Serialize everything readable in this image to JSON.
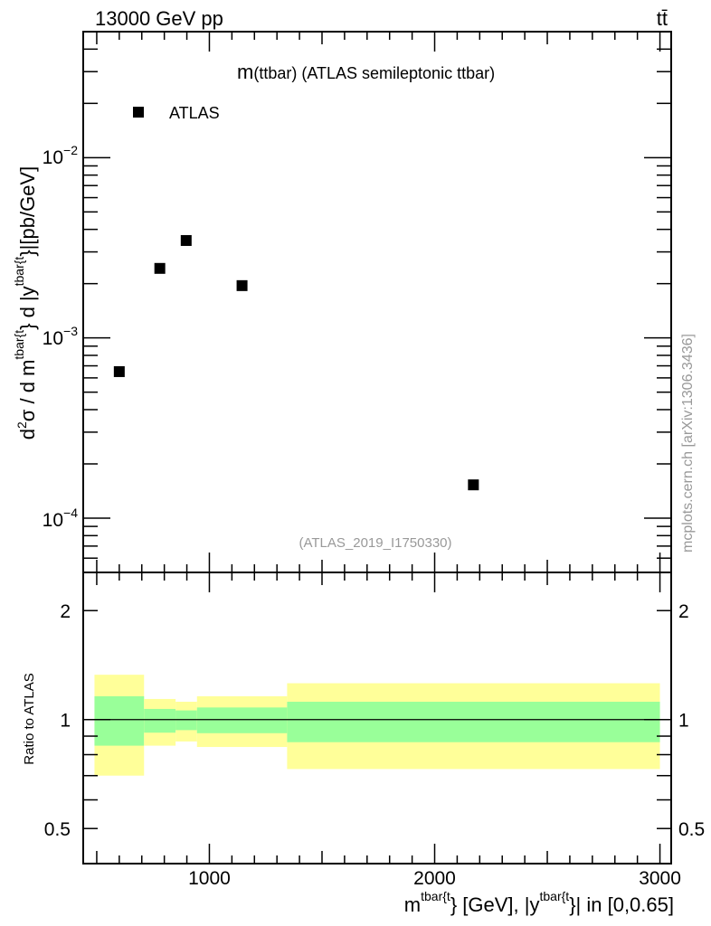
{
  "header": {
    "left": "13000 GeV pp",
    "right": "tt̄"
  },
  "side_label": "mcplots.cern.ch [arXiv:1306.3436]",
  "watermark": "(ATLAS_2019_I1750330)",
  "title": {
    "main": "m",
    "rest": "(ttbar) (ATLAS semileptonic ttbar)"
  },
  "colors": {
    "data": "#000000",
    "band_inner": "#99ff99",
    "band_outer": "#ffff99"
  },
  "chart_data": [
    {
      "type": "scatter",
      "title": "m(ttbar) (ATLAS semileptonic ttbar)",
      "ylabel_parts": {
        "a": "d",
        "a_sup": "2",
        "b": "σ / d m",
        "b_sup": "tbar{t",
        "c": "} d |y",
        "c_sup": "tbar{t",
        "d": "}|[pb/GeV]"
      },
      "yscale": "log",
      "ylim": [
        5e-05,
        0.05
      ],
      "xlim": [
        440,
        3050
      ],
      "ytick_labels": [
        {
          "base": "10",
          "exp": "−2",
          "value": 0.01
        },
        {
          "base": "10",
          "exp": "−3",
          "value": 0.001
        },
        {
          "base": "10",
          "exp": "−4",
          "value": 0.0001
        }
      ],
      "legend": {
        "entries": [
          "ATLAS"
        ],
        "placement": "top-left"
      },
      "series": [
        {
          "name": "ATLAS",
          "x": [
            600,
            780,
            897,
            1145,
            2172
          ],
          "y": [
            0.00065,
            0.00243,
            0.00347,
            0.00195,
            0.000153
          ]
        }
      ]
    },
    {
      "type": "area",
      "ylabel": "Ratio to ATLAS",
      "xlabel_parts": {
        "a": "m",
        "a_sup": "tbar{t",
        "b": "} [GeV], |y",
        "b_sup": "tbar{t",
        "c": "}| in [0,0.65]"
      },
      "yscale": "log",
      "ylim": [
        0.4,
        2.55
      ],
      "xlim": [
        440,
        3050
      ],
      "ytick_labels": [
        "2",
        "1",
        "0.5"
      ],
      "yticks": [
        2,
        1,
        0.5
      ],
      "xtick_labels": [
        "1000",
        "2000",
        "3000"
      ],
      "xticks": [
        1000,
        2000,
        3000
      ],
      "bin_edges": [
        490,
        710,
        850,
        945,
        1345,
        3000
      ],
      "inner_band": {
        "low": [
          0.847,
          0.92,
          0.935,
          0.917,
          0.866
        ],
        "high": [
          1.16,
          1.07,
          1.06,
          1.08,
          1.12
        ]
      },
      "outer_band": {
        "low": [
          0.7,
          0.847,
          0.87,
          0.84,
          0.73
        ],
        "high": [
          1.33,
          1.14,
          1.12,
          1.16,
          1.26
        ]
      },
      "reference_line": 1
    }
  ]
}
